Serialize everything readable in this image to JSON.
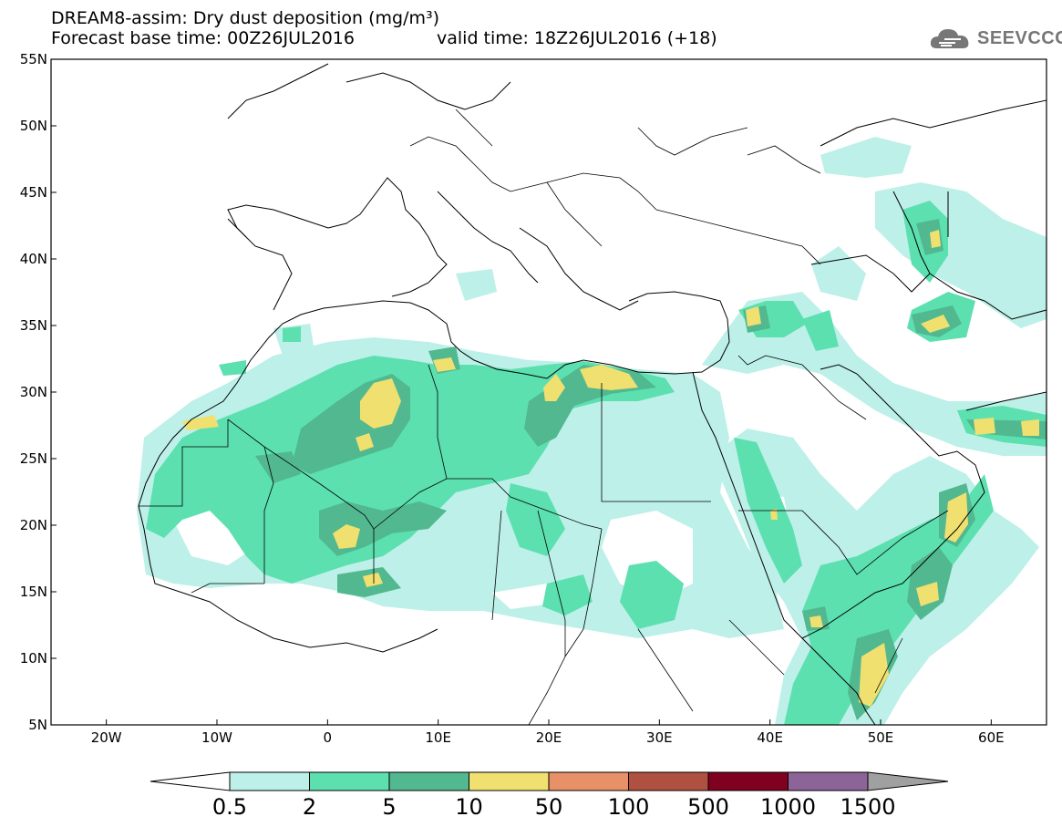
{
  "title": {
    "line1": "DREAM8-assim: Dry dust deposition (mg/m³)",
    "line2": "Forecast base time: 00Z26JUL2016",
    "valid": "valid time: 18Z26JUL2016 (+18)"
  },
  "logo": {
    "text": "SEEVCCC",
    "icon": "cloud-logo-icon"
  },
  "map": {
    "lon_range": [
      -25,
      65
    ],
    "lat_range": [
      5,
      55
    ],
    "lon_ticks": [
      {
        "lon": -20,
        "label": "20W"
      },
      {
        "lon": -10,
        "label": "10W"
      },
      {
        "lon": 0,
        "label": "0"
      },
      {
        "lon": 10,
        "label": "10E"
      },
      {
        "lon": 20,
        "label": "20E"
      },
      {
        "lon": 30,
        "label": "30E"
      },
      {
        "lon": 40,
        "label": "40E"
      },
      {
        "lon": 50,
        "label": "50E"
      },
      {
        "lon": 60,
        "label": "60E"
      }
    ],
    "lat_ticks": [
      {
        "lat": 55,
        "label": "55N"
      },
      {
        "lat": 50,
        "label": "50N"
      },
      {
        "lat": 45,
        "label": "45N"
      },
      {
        "lat": 40,
        "label": "40N"
      },
      {
        "lat": 35,
        "label": "35N"
      },
      {
        "lat": 30,
        "label": "30N"
      },
      {
        "lat": 25,
        "label": "25N"
      },
      {
        "lat": 20,
        "label": "20N"
      },
      {
        "lat": 15,
        "label": "15N"
      },
      {
        "lat": 10,
        "label": "10N"
      },
      {
        "lat": 5,
        "label": "5N"
      }
    ]
  },
  "colorbar": {
    "labels": [
      "0.5",
      "2",
      "5",
      "10",
      "50",
      "100",
      "500",
      "1000",
      "1500"
    ],
    "colors": [
      "#ffffff",
      "#bdf0e8",
      "#5ce0b0",
      "#52b890",
      "#f0e070",
      "#e89068",
      "#b05040",
      "#800020",
      "#8c6498",
      "#a0a0a0"
    ]
  }
}
